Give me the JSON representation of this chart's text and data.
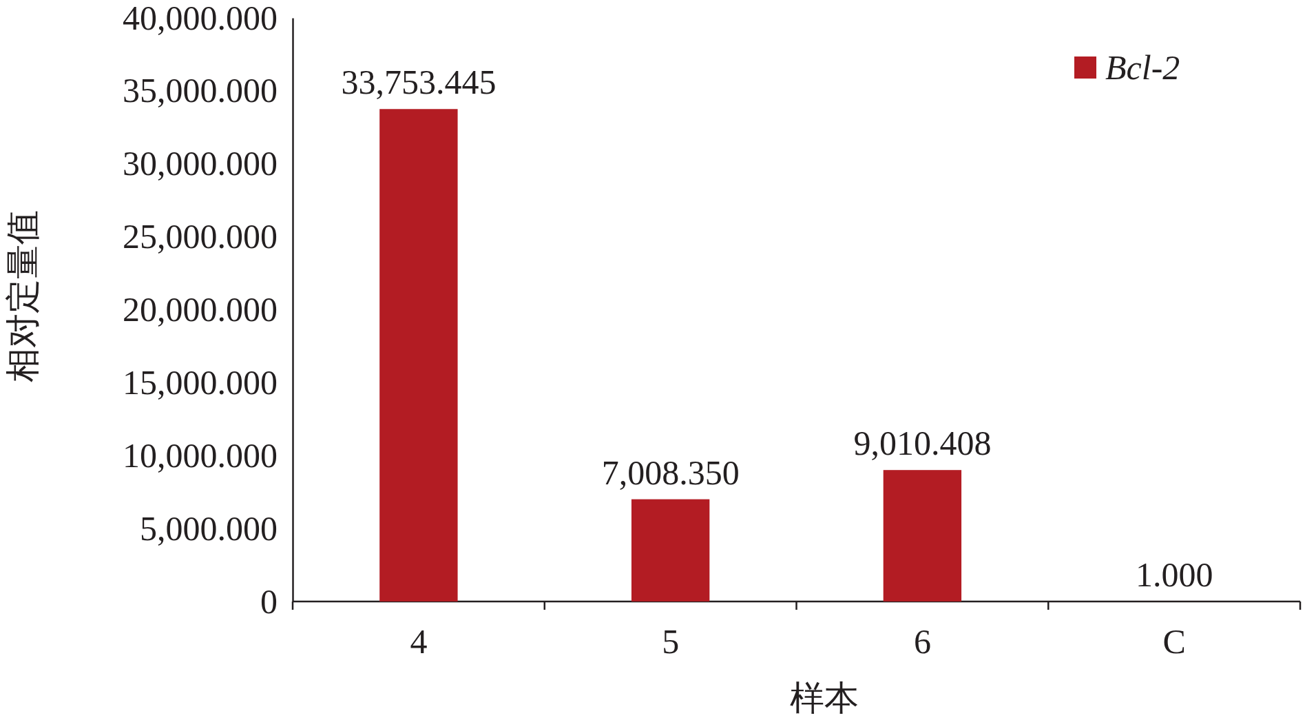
{
  "chart_data": {
    "type": "bar",
    "xlabel": "样本",
    "ylabel": "相对定量值",
    "categories": [
      "4",
      "5",
      "6",
      "C"
    ],
    "series": [
      {
        "name": "Bcl-2",
        "color": "#b31c23",
        "values": [
          33753.445,
          7008.35,
          9010.408,
          1
        ],
        "value_labels": [
          "33,753.445",
          "7,008.350",
          "9,010.408",
          "1.000"
        ]
      }
    ],
    "ylim": [
      0,
      40000
    ],
    "yticks": [
      {
        "value": 0,
        "label": "0"
      },
      {
        "value": 5000,
        "label": "5,000.000"
      },
      {
        "value": 10000,
        "label": "10,000.000"
      },
      {
        "value": 15000,
        "label": "15,000.000"
      },
      {
        "value": 20000,
        "label": "20,000.000"
      },
      {
        "value": 25000,
        "label": "25,000.000"
      },
      {
        "value": 30000,
        "label": "30,000.000"
      },
      {
        "value": 35000,
        "label": "35,000.000"
      },
      {
        "value": 40000,
        "label": "40,000.000"
      }
    ],
    "grid": false,
    "legend": "top right"
  }
}
